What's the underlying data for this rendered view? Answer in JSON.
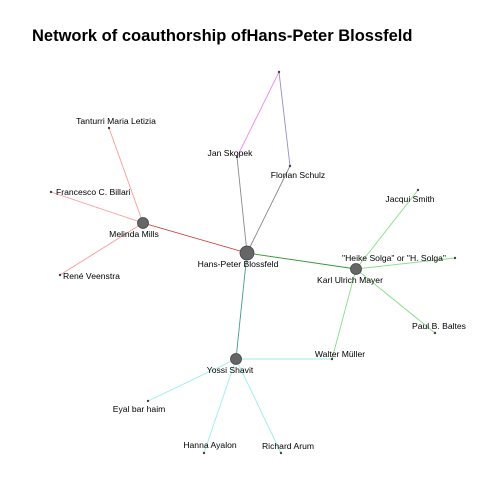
{
  "title": "Network of coauthorship ofHans-Peter Blossfeld",
  "colors": {
    "node_fill": "#666666",
    "node_stroke": "#444444",
    "background": "#ffffff"
  },
  "nodes": [
    {
      "id": "hpb",
      "label": "Hans-Peter Blossfeld",
      "hub": true
    },
    {
      "id": "melinda",
      "label": "Melinda Mills",
      "hub": true
    },
    {
      "id": "kum",
      "label": "Karl Ulrich Mayer",
      "hub": true
    },
    {
      "id": "yossi",
      "label": "Yossi Shavit",
      "hub": true
    },
    {
      "id": "tanturri",
      "label": "Tanturri Maria Letizia",
      "hub": false
    },
    {
      "id": "billari",
      "label": "Francesco C. Billari",
      "hub": false
    },
    {
      "id": "rene",
      "label": "René Veenstra",
      "hub": false
    },
    {
      "id": "skopek",
      "label": "Jan Skopek",
      "hub": false
    },
    {
      "id": "schulz",
      "label": "Florian Schulz",
      "hub": false
    },
    {
      "id": "top",
      "label": "",
      "hub": false
    },
    {
      "id": "jacqui",
      "label": "Jacqui Smith",
      "hub": false
    },
    {
      "id": "solga",
      "label": "\"Heike Solga\" or \"H. Solga\"",
      "hub": false
    },
    {
      "id": "baltes",
      "label": "Paul B. Baltes",
      "hub": false
    },
    {
      "id": "muller",
      "label": "Walter Müller",
      "hub": false
    },
    {
      "id": "eyal",
      "label": "Eyal bar haim",
      "hub": false
    },
    {
      "id": "hanna",
      "label": "Hanna Ayalon",
      "hub": false
    },
    {
      "id": "arum",
      "label": "Richard Arum",
      "hub": false
    }
  ],
  "edges": [
    {
      "source": "melinda",
      "target": "hpb",
      "color": "#cc3333"
    },
    {
      "source": "melinda",
      "target": "tanturri",
      "color": "#ff9999"
    },
    {
      "source": "melinda",
      "target": "billari",
      "color": "#ff9999"
    },
    {
      "source": "melinda",
      "target": "rene",
      "color": "#ff9999"
    },
    {
      "source": "hpb",
      "target": "skopek",
      "color": "#888888"
    },
    {
      "source": "hpb",
      "target": "schulz",
      "color": "#888888"
    },
    {
      "source": "skopek",
      "target": "top",
      "color": "#ee88ee"
    },
    {
      "source": "schulz",
      "target": "top",
      "color": "#9988cc"
    },
    {
      "source": "hpb",
      "target": "kum",
      "color": "#339933"
    },
    {
      "source": "kum",
      "target": "jacqui",
      "color": "#88dd88"
    },
    {
      "source": "kum",
      "target": "solga",
      "color": "#88dd88"
    },
    {
      "source": "kum",
      "target": "baltes",
      "color": "#88dd88"
    },
    {
      "source": "kum",
      "target": "muller",
      "color": "#88dd88"
    },
    {
      "source": "hpb",
      "target": "yossi",
      "color": "#449999"
    },
    {
      "source": "yossi",
      "target": "muller",
      "color": "#99eeee"
    },
    {
      "source": "yossi",
      "target": "eyal",
      "color": "#99eeee"
    },
    {
      "source": "yossi",
      "target": "hanna",
      "color": "#99eeee"
    },
    {
      "source": "yossi",
      "target": "arum",
      "color": "#99eeee"
    }
  ]
}
